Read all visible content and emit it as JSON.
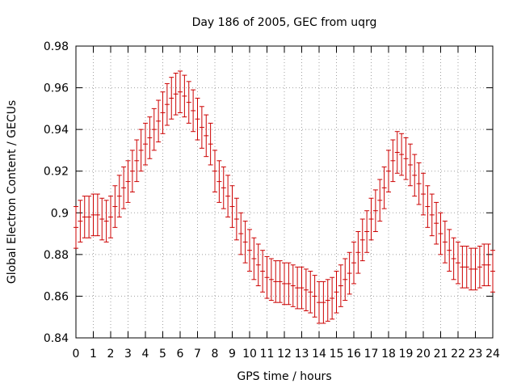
{
  "chart_data": {
    "type": "scatter",
    "title": "Day 186 of 2005, GEC from uqrg",
    "xlabel": "GPS time / hours",
    "ylabel": "Global Electron Content / GECUs",
    "xlim": [
      0,
      24
    ],
    "ylim": [
      0.84,
      0.98
    ],
    "xticks": [
      "0",
      "1",
      "2",
      "3",
      "4",
      "5",
      "6",
      "7",
      "8",
      "9",
      "10",
      "11",
      "12",
      "13",
      "14",
      "15",
      "16",
      "17",
      "18",
      "19",
      "20",
      "21",
      "22",
      "23",
      "24"
    ],
    "yticks": [
      "0.84",
      "0.86",
      "0.88",
      "0.9",
      "0.92",
      "0.94",
      "0.96",
      "0.98"
    ],
    "grid": true,
    "series_color": "#cc0000",
    "error_bars": true,
    "error_halfwidth": 0.01,
    "x": [
      0,
      0.25,
      0.5,
      0.75,
      1,
      1.25,
      1.5,
      1.75,
      2,
      2.25,
      2.5,
      2.75,
      3,
      3.25,
      3.5,
      3.75,
      4,
      4.25,
      4.5,
      4.75,
      5,
      5.25,
      5.5,
      5.75,
      6,
      6.25,
      6.5,
      6.75,
      7,
      7.25,
      7.5,
      7.75,
      8,
      8.25,
      8.5,
      8.75,
      9,
      9.25,
      9.5,
      9.75,
      10,
      10.25,
      10.5,
      10.75,
      11,
      11.25,
      11.5,
      11.75,
      12,
      12.25,
      12.5,
      12.75,
      13,
      13.25,
      13.5,
      13.75,
      14,
      14.25,
      14.5,
      14.75,
      15,
      15.25,
      15.5,
      15.75,
      16,
      16.25,
      16.5,
      16.75,
      17,
      17.25,
      17.5,
      17.75,
      18,
      18.25,
      18.5,
      18.75,
      19,
      19.25,
      19.5,
      19.75,
      20,
      20.25,
      20.5,
      20.75,
      21,
      21.25,
      21.5,
      21.75,
      22,
      22.25,
      22.5,
      22.75,
      23,
      23.25,
      23.5,
      23.75,
      24
    ],
    "y": [
      0.893,
      0.896,
      0.898,
      0.898,
      0.899,
      0.899,
      0.897,
      0.896,
      0.898,
      0.903,
      0.908,
      0.912,
      0.915,
      0.92,
      0.925,
      0.93,
      0.933,
      0.936,
      0.94,
      0.944,
      0.948,
      0.952,
      0.955,
      0.957,
      0.958,
      0.956,
      0.953,
      0.949,
      0.945,
      0.941,
      0.937,
      0.933,
      0.92,
      0.915,
      0.912,
      0.908,
      0.903,
      0.897,
      0.89,
      0.886,
      0.882,
      0.878,
      0.875,
      0.872,
      0.869,
      0.868,
      0.867,
      0.867,
      0.866,
      0.866,
      0.865,
      0.864,
      0.864,
      0.863,
      0.862,
      0.86,
      0.857,
      0.857,
      0.858,
      0.859,
      0.862,
      0.865,
      0.868,
      0.871,
      0.876,
      0.881,
      0.887,
      0.891,
      0.897,
      0.901,
      0.906,
      0.912,
      0.92,
      0.925,
      0.929,
      0.928,
      0.926,
      0.923,
      0.918,
      0.914,
      0.909,
      0.903,
      0.899,
      0.895,
      0.89,
      0.886,
      0.882,
      0.878,
      0.876,
      0.874,
      0.874,
      0.873,
      0.873,
      0.874,
      0.875,
      0.875,
      0.872
    ]
  }
}
